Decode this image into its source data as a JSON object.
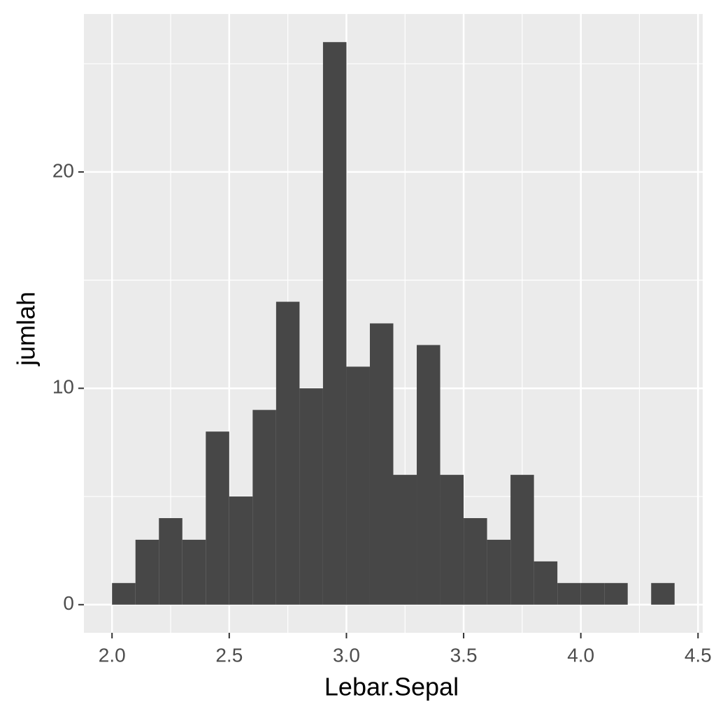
{
  "chart_data": {
    "type": "histogram",
    "x_label": "Lebar.Sepal",
    "y_label": "jumlah",
    "bins": [
      2.0,
      2.1,
      2.2,
      2.3,
      2.4,
      2.5,
      2.6,
      2.7,
      2.8,
      2.9,
      3.0,
      3.1,
      3.2,
      3.3,
      3.4,
      3.5,
      3.6,
      3.7,
      3.8,
      3.9,
      4.0,
      4.1,
      4.2,
      4.3,
      4.4
    ],
    "values": [
      1,
      3,
      4,
      3,
      8,
      5,
      9,
      14,
      10,
      26,
      11,
      13,
      6,
      12,
      6,
      4,
      3,
      6,
      2,
      1,
      1,
      1,
      0,
      1
    ],
    "color": "#474747",
    "xlim": [
      1.88,
      4.52
    ],
    "ylim": [
      -1.3,
      27.3
    ],
    "xticks": [
      {
        "value": 2,
        "label": "2.0"
      },
      2.5,
      {
        "value": 3,
        "label": "3.0"
      },
      3.5,
      {
        "value": 4,
        "label": "4.0"
      },
      4.5
    ],
    "yticks": [
      0,
      10,
      20
    ],
    "x_minor_ticks": [
      2.25,
      2.75,
      3.25,
      3.75,
      4.25
    ],
    "y_minor_ticks": [
      5,
      15,
      25
    ],
    "grid": true
  }
}
